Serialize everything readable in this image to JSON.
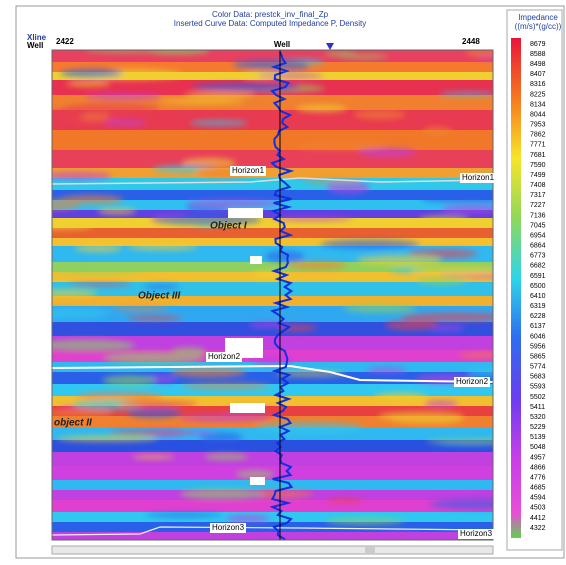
{
  "header": {
    "title": "Color Data: prestck_inv_final_Zp",
    "subtitle": "Inserted Curve Data: Computed Impedance P, Density"
  },
  "axis": {
    "xline_label": "Xline",
    "well_label": "Well",
    "left_trace": "2422",
    "right_trace": "2448",
    "well_name": "Well"
  },
  "annotations": {
    "horizon1_left": "Horizon1",
    "horizon1_right": "Horizon1",
    "horizon2_left": "Horizon2",
    "horizon2_right": "Horizon2",
    "horizon3_left": "Horizon3",
    "horizon3_right": "Horizon3",
    "object1": "Object I",
    "object3": "Object III",
    "object2": "object II"
  },
  "colorbar": {
    "title": "Impedance",
    "unit": "((m/s)*(g/cc))",
    "labels": [
      "8679",
      "8588",
      "8498",
      "8407",
      "8316",
      "8225",
      "8134",
      "8044",
      "7953",
      "7862",
      "7771",
      "7681",
      "7590",
      "7499",
      "7408",
      "7317",
      "7227",
      "7136",
      "7045",
      "6954",
      "6864",
      "6773",
      "6682",
      "6591",
      "6500",
      "6410",
      "6319",
      "6228",
      "6137",
      "6046",
      "5956",
      "5865",
      "5774",
      "5683",
      "5593",
      "5502",
      "5411",
      "5320",
      "5229",
      "5139",
      "5048",
      "4957",
      "4866",
      "4776",
      "4685",
      "4594",
      "4503",
      "4412",
      "4322"
    ]
  }
}
